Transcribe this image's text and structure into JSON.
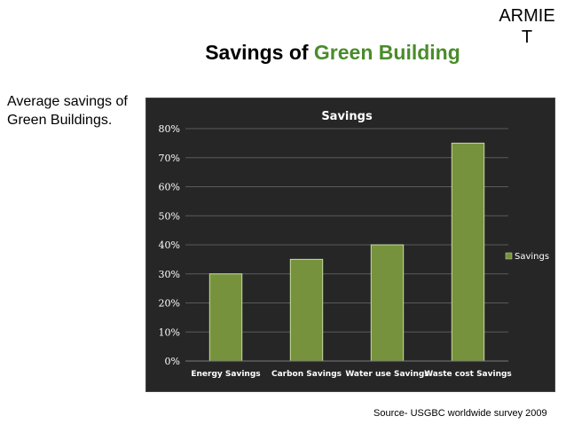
{
  "brand": "ARMIE T",
  "title": {
    "prefix": "Savings of ",
    "highlight": "Green Building"
  },
  "side_note": "Average savings  of Green Buildings.",
  "source": "Source- USGBC worldwide survey 2009",
  "colors": {
    "bar": "#76923c",
    "bar_edge": "#c6dca0",
    "title_accent": "#4a8c2a",
    "chart_bg": "#262626"
  },
  "chart_data": {
    "type": "bar",
    "title": "Savings",
    "categories": [
      "Energy Savings",
      "Carbon Savings",
      "Water use Savings",
      "Waste cost Savings"
    ],
    "series": [
      {
        "name": "Savings",
        "values": [
          30,
          35,
          40,
          75
        ]
      }
    ],
    "ylim": [
      0,
      80
    ],
    "yticks": [
      "0%",
      "10%",
      "20%",
      "30%",
      "40%",
      "50%",
      "60%",
      "70%",
      "80%"
    ],
    "grid": true,
    "legend": "right"
  }
}
